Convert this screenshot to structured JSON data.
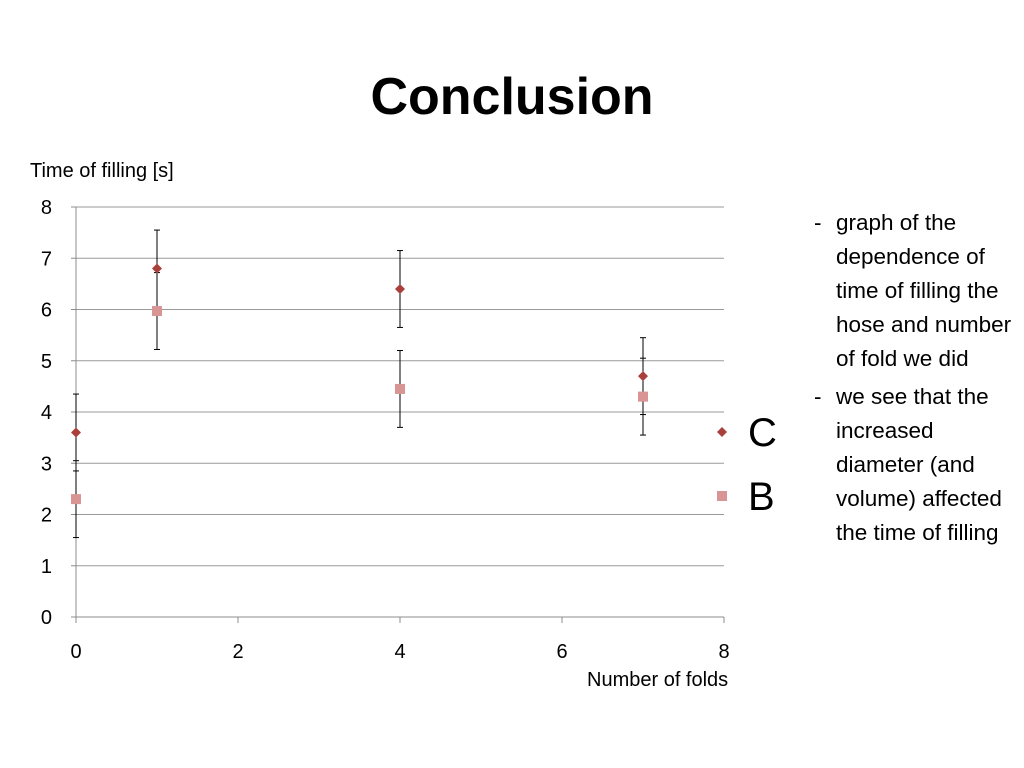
{
  "slide": {
    "title": "Conclusion",
    "bullets": [
      {
        "marker": "-",
        "text": "graph of the dependence of time of filling the hose and number of fold we did"
      },
      {
        "marker": "-",
        "text": "we see that the increased diameter (and volume) affected the time of filling"
      }
    ]
  },
  "chart_data": {
    "type": "scatter",
    "title": "",
    "xlabel": "Number of folds",
    "ylabel": "Time of filling [s]",
    "xlim": [
      0,
      8
    ],
    "ylim": [
      0,
      8
    ],
    "xticks": [
      0,
      2,
      4,
      6,
      8
    ],
    "yticks": [
      0,
      1,
      2,
      3,
      4,
      5,
      6,
      7,
      8
    ],
    "grid": "horizontal",
    "legend": "right",
    "series": [
      {
        "name": "C",
        "marker": "diamond",
        "color": "#a9403b",
        "points": [
          {
            "x": 0,
            "y": 3.6,
            "err": 0.75
          },
          {
            "x": 1,
            "y": 6.8,
            "err": 0.75
          },
          {
            "x": 4,
            "y": 6.4,
            "err": 0.75
          },
          {
            "x": 7,
            "y": 4.7,
            "err": 0.75
          }
        ]
      },
      {
        "name": "B",
        "marker": "square",
        "color": "#d99594",
        "points": [
          {
            "x": 0,
            "y": 2.3,
            "err": 0.75
          },
          {
            "x": 1,
            "y": 5.97,
            "err": 0.75
          },
          {
            "x": 4,
            "y": 4.45,
            "err": 0.75
          },
          {
            "x": 7,
            "y": 4.3,
            "err": 0.75
          }
        ]
      }
    ]
  }
}
